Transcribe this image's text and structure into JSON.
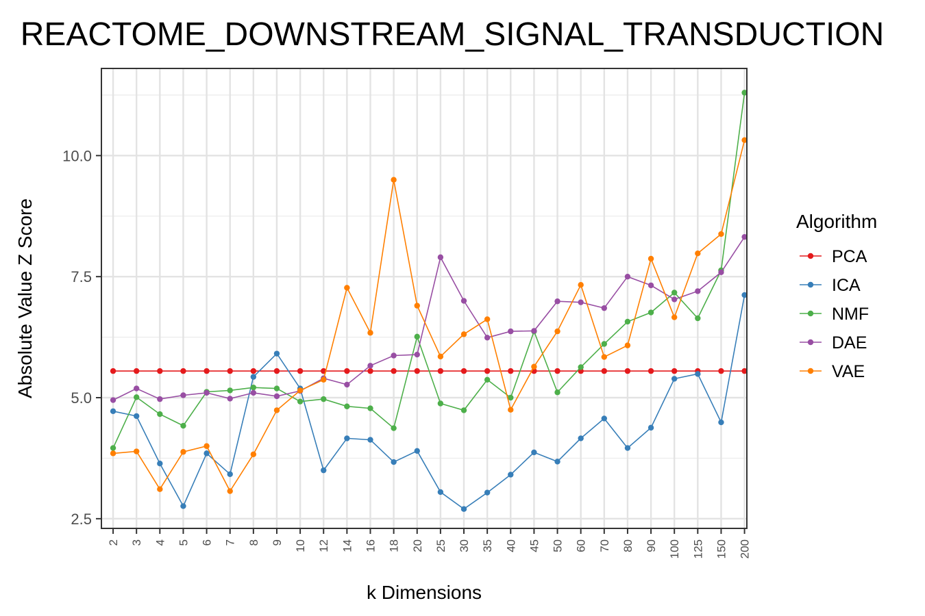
{
  "chart_data": {
    "type": "line",
    "title": "REACTOME_DOWNSTREAM_SIGNAL_TRANSDUCTION",
    "xlabel": "k Dimensions",
    "ylabel": "Absolute Value Z Score",
    "categories": [
      "2",
      "3",
      "4",
      "5",
      "6",
      "7",
      "8",
      "9",
      "10",
      "12",
      "14",
      "16",
      "18",
      "20",
      "25",
      "30",
      "35",
      "40",
      "45",
      "50",
      "60",
      "70",
      "80",
      "90",
      "100",
      "125",
      "150",
      "200"
    ],
    "ylim": [
      2.3,
      11.8
    ],
    "yticks": [
      2.5,
      5.0,
      7.5,
      10.0
    ],
    "ytick_labels": [
      "2.5",
      "5.0",
      "7.5",
      "10.0"
    ],
    "grid": true,
    "legend_title": "Algorithm",
    "legend_position": "right",
    "series": [
      {
        "name": "PCA",
        "color": "#e41a1c",
        "values": [
          5.55,
          5.55,
          5.55,
          5.55,
          5.55,
          5.55,
          5.55,
          5.55,
          5.55,
          5.55,
          5.55,
          5.55,
          5.55,
          5.55,
          5.55,
          5.55,
          5.55,
          5.55,
          5.55,
          5.55,
          5.55,
          5.55,
          5.55,
          5.55,
          5.55,
          5.55,
          5.55,
          5.55
        ]
      },
      {
        "name": "ICA",
        "color": "#377eb8",
        "values": [
          4.72,
          4.62,
          3.64,
          2.76,
          3.85,
          3.42,
          5.43,
          5.91,
          5.19,
          3.5,
          4.16,
          4.13,
          3.67,
          3.9,
          3.05,
          2.7,
          3.04,
          3.41,
          3.87,
          3.68,
          4.16,
          4.57,
          3.96,
          4.38,
          5.39,
          5.49,
          4.49,
          7.12
        ]
      },
      {
        "name": "NMF",
        "color": "#4daf4a",
        "values": [
          3.96,
          5.01,
          4.66,
          4.42,
          5.12,
          5.15,
          5.21,
          5.19,
          4.92,
          4.97,
          4.82,
          4.78,
          4.37,
          6.26,
          4.88,
          4.74,
          5.37,
          5.0,
          6.37,
          5.11,
          5.63,
          6.11,
          6.57,
          6.76,
          7.17,
          6.64,
          7.63,
          11.3
        ]
      },
      {
        "name": "DAE",
        "color": "#984ea3",
        "values": [
          4.95,
          5.19,
          4.97,
          5.05,
          5.1,
          4.98,
          5.1,
          5.03,
          5.14,
          5.4,
          5.27,
          5.66,
          5.87,
          5.89,
          7.9,
          7.0,
          6.24,
          6.37,
          6.38,
          6.99,
          6.97,
          6.85,
          7.5,
          7.32,
          7.03,
          7.2,
          7.59,
          8.32
        ]
      },
      {
        "name": "VAE",
        "color": "#ff7f00",
        "values": [
          3.85,
          3.89,
          3.11,
          3.88,
          4.0,
          3.07,
          3.83,
          4.74,
          5.15,
          5.37,
          7.27,
          6.34,
          9.5,
          6.9,
          5.85,
          6.31,
          6.62,
          4.75,
          5.64,
          6.37,
          7.33,
          5.84,
          6.08,
          7.87,
          6.66,
          7.98,
          8.38,
          10.32
        ]
      }
    ]
  }
}
